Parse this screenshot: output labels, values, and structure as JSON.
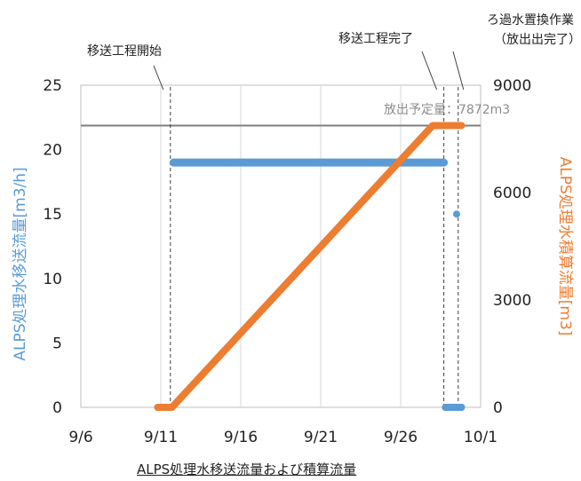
{
  "chart_data": {
    "type": "line",
    "xlabel": "ALPS処理水移送流量および積算流量",
    "x_ticks": [
      "9/6",
      "9/11",
      "9/16",
      "9/21",
      "9/26",
      "10/1"
    ],
    "x_range": [
      "9/6",
      "10/1"
    ],
    "y_left": {
      "label": "ALPS処理水移送流量[m3/h]",
      "ticks": [
        "0",
        "5",
        "10",
        "15",
        "20",
        "25"
      ],
      "range": [
        0,
        25
      ],
      "color": "#5B9BD5"
    },
    "y_right": {
      "label": "ALPS処理水積算流量[m3]",
      "ticks": [
        "0",
        "3000",
        "6000",
        "9000"
      ],
      "range": [
        0,
        9000
      ],
      "color": "#ED7D31"
    },
    "series": [
      {
        "name": "ALPS処理水移送流量",
        "axis": "left",
        "color": "#5B9BD5",
        "points": [
          [
            "9/11",
            0
          ],
          [
            "9/11.8",
            19
          ],
          [
            "9/15",
            19
          ],
          [
            "9/20",
            19
          ],
          [
            "9/25",
            19
          ],
          [
            "9/28.7",
            19
          ],
          [
            "9/28.8",
            0
          ],
          [
            "9/29.4",
            0
          ],
          [
            "9/29.5",
            15
          ],
          [
            "9/29.8",
            0
          ]
        ]
      },
      {
        "name": "ALPS処理水積算流量",
        "axis": "right",
        "color": "#ED7D31",
        "points": [
          [
            "9/10.8",
            0
          ],
          [
            "9/11.7",
            0
          ],
          [
            "9/28.0",
            7872
          ],
          [
            "9/29.8",
            7872
          ]
        ]
      }
    ],
    "reference_line": {
      "axis": "right",
      "value": 7872,
      "label": "放出予定量：7872m3",
      "color": "#7f7f7f"
    },
    "annotations": [
      {
        "text": "移送工程開始",
        "x": "9/11.6"
      },
      {
        "text": "移送工程完了",
        "x": "9/28.7"
      },
      {
        "text": "ろ過水置換作業",
        "text2": "（放出出完了）",
        "x": "9/29.6"
      }
    ],
    "grid": "vertical"
  }
}
